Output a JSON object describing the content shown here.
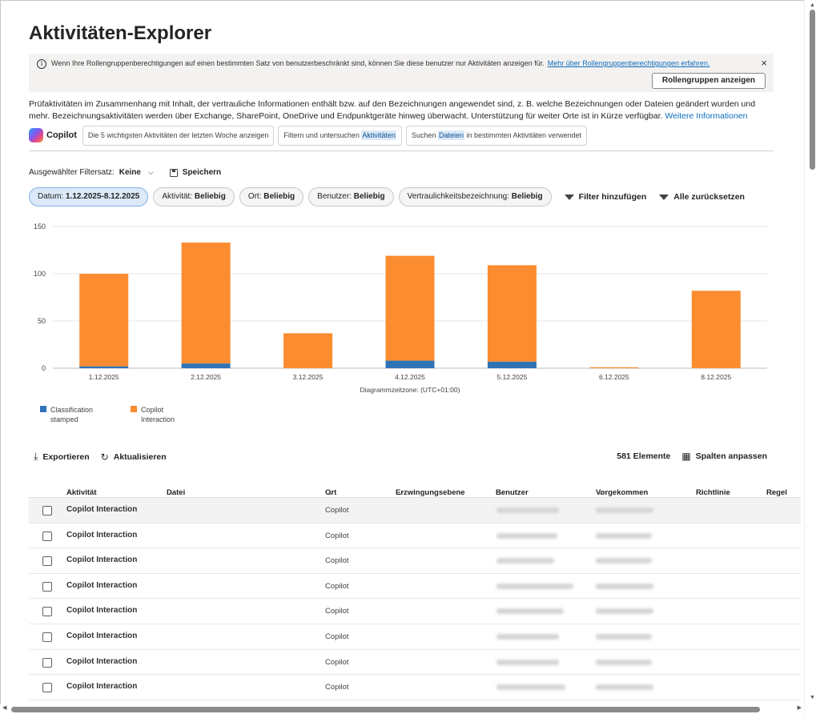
{
  "page": {
    "title": "Aktivitäten-Explorer"
  },
  "banner": {
    "message": "Wenn Ihre Rollengruppenberechtigungen auf einen bestimmten Satz von benutzerbeschränkt sind, können Sie diese benutzer nur Aktivitäten anzeigen für.",
    "link": "Mehr über Rollengruppenberechtigungen erfahren.",
    "button": "Rollengruppen anzeigen",
    "close_icon": "×"
  },
  "description": {
    "text": "Prüfaktivitäten im Zusammenhang mit Inhalt, der vertrauliche Informationen enthält bzw. auf den Bezeichnungen angewendet sind, z. B. welche Bezeichnungen oder Dateien geändert wurden und mehr. Bezeichnungsaktivitäten werden über Exchange, SharePoint, OneDrive und Endpunktgeräte hinweg überwacht. Unterstützung für weiter Orte ist in Kürze verfügbar.",
    "link": "Weitere Informationen"
  },
  "copilot": {
    "label": "Copilot",
    "prompts": [
      {
        "pre": "Die 5 wichtigsten Aktivitäten der letzten Woche anzeigen",
        "hl": "",
        "post": ""
      },
      {
        "pre": "Filtern und untersuchen ",
        "hl": "Aktivitäten",
        "post": ""
      },
      {
        "pre": "Suchen ",
        "hl": "Dateien",
        "post": " in bestimmten Aktivitäten verwendet"
      }
    ]
  },
  "filterset": {
    "label": "Ausgewählter Filtersatz:",
    "value": "Keine",
    "save": "Speichern"
  },
  "filters": [
    {
      "key": "Datum:",
      "value": "1.12.2025-8.12.2025",
      "active": true
    },
    {
      "key": "Aktivität:",
      "value": "Beliebig"
    },
    {
      "key": "Ort:",
      "value": "Beliebig"
    },
    {
      "key": "Benutzer:",
      "value": "Beliebig"
    },
    {
      "key": "Vertraulichkeitsbezeichnung:",
      "value": "Beliebig"
    }
  ],
  "filter_actions": {
    "add": "Filter hinzufügen",
    "reset": "Alle zurücksetzen"
  },
  "chart_data": {
    "type": "bar",
    "stacked": true,
    "categories": [
      "1.12.2025",
      "2.12.2025",
      "3.12.2025",
      "4.12.2025",
      "5.12.2025",
      "6.12.2025",
      "8.12.2025"
    ],
    "series": [
      {
        "name": "Classification stamped",
        "color": "#2f73b6",
        "values": [
          2,
          5,
          0,
          8,
          7,
          0,
          0
        ]
      },
      {
        "name": "Copilot Interaction",
        "color": "#fb8c30",
        "values": [
          98,
          128,
          37,
          111,
          102,
          1,
          82
        ]
      }
    ],
    "yticks": [
      0,
      50,
      100,
      150
    ],
    "ylim": [
      0,
      150
    ],
    "xlabel": "Diagrammzeitzone: (UTC+01:00)",
    "legend_position": "bottom-left",
    "grid": true
  },
  "legend": [
    {
      "label": "Classification stamped",
      "color": "#2f73b6"
    },
    {
      "label": "Copilot Interaction",
      "color": "#fb8c30"
    }
  ],
  "toolbar": {
    "export": "Exportieren",
    "refresh": "Aktualisieren",
    "count": "581 Elemente",
    "columns": "Spalten anpassen"
  },
  "table": {
    "columns": [
      "Aktivität",
      "Datei",
      "Ort",
      "Erzwingungsebene",
      "Benutzer",
      "Vorgekommen",
      "Richtlinie",
      "Regel"
    ],
    "rows": [
      {
        "activity": "Copilot Interaction",
        "location": "Copilot"
      },
      {
        "activity": "Copilot Interaction",
        "location": "Copilot"
      },
      {
        "activity": "Copilot Interaction",
        "location": "Copilot"
      },
      {
        "activity": "Copilot Interaction",
        "location": "Copilot"
      },
      {
        "activity": "Copilot Interaction",
        "location": "Copilot"
      },
      {
        "activity": "Copilot Interaction",
        "location": "Copilot"
      },
      {
        "activity": "Copilot Interaction",
        "location": "Copilot"
      },
      {
        "activity": "Copilot Interaction",
        "location": "Copilot"
      }
    ]
  }
}
